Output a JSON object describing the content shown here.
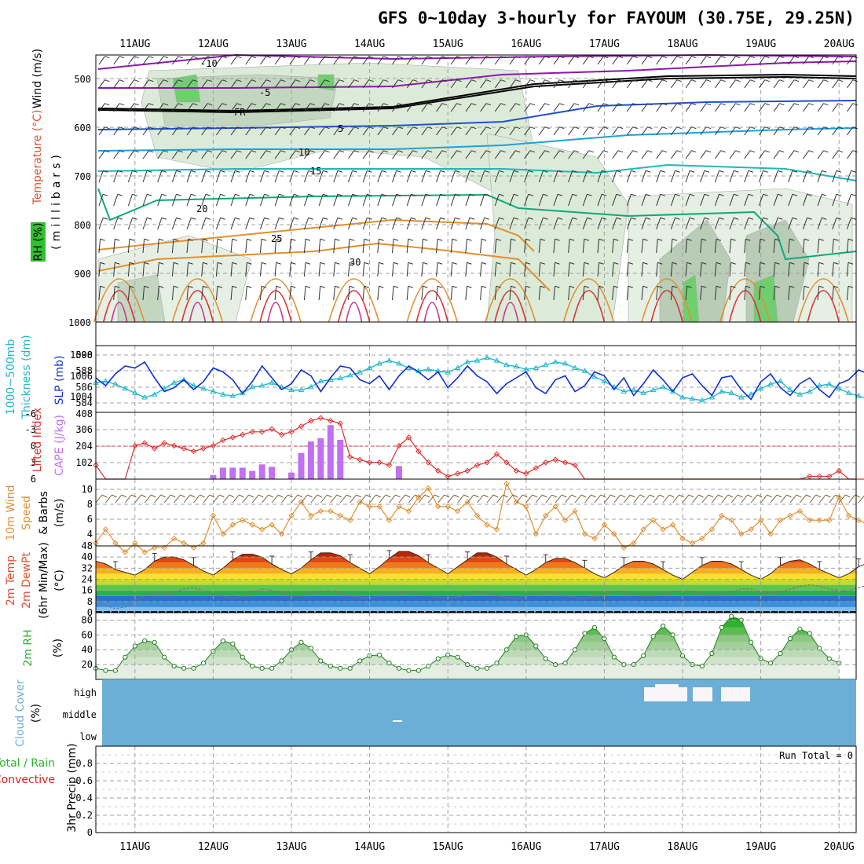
{
  "header": {
    "title": "GFS 0~10day 3-hourly for FAYOUM (30.75E, 29.25N)"
  },
  "dates": [
    "11AUG",
    "12AUG",
    "13AUG",
    "14AUG",
    "15AUG",
    "16AUG",
    "17AUG",
    "18AUG",
    "19AUG",
    "20AUG"
  ],
  "colors": {
    "background": "#ffffff",
    "temperature_label": "#e05030",
    "wind_label": "#000000",
    "rh_label": "#30b030",
    "slp": "#1030d0",
    "thickness": "#20b8c8",
    "cape": "#c070f0",
    "lifted_index": "#e03030",
    "wind_speed": "#e09030",
    "cloud": "#6baed6",
    "rh2m": "#30c030",
    "precip_total": "#30b030",
    "precip_convective": "#e02020"
  },
  "panels": {
    "profile": {
      "axis_title": "(millibars)",
      "label_temperature": "Temperature (°C)",
      "label_wind": "Wind (m/s)",
      "label_rh": "RH (%)",
      "yticks": [
        "500",
        "600",
        "700",
        "800",
        "900",
        "1000"
      ]
    },
    "slp": {
      "label_thickness_1": "1000~500mb",
      "label_thickness_2": "Thickness (dm)",
      "label_slp": "SLP (mb)",
      "left_ticks": [
        "590",
        "588",
        "586",
        "584"
      ],
      "right_ticks": [
        "1008",
        "1006",
        "1004"
      ]
    },
    "cape": {
      "label_li": "Lifted Index",
      "label_cape": "CAPE (J/kg)",
      "left_ticks": [
        "-6",
        "-3",
        "0",
        "3",
        "6"
      ],
      "right_ticks": [
        "408",
        "306",
        "204",
        "102"
      ]
    },
    "wind10": {
      "label_1": "10m Wind",
      "label_2": "Speed",
      "label_3": "& Barbs",
      "label_4": "(m/s)",
      "ticks": [
        "10",
        "8",
        "6",
        "4"
      ]
    },
    "temp2m": {
      "label_1": "2m Temp",
      "label_2": "2m DewPt",
      "label_3": "(6hr Min/Max)",
      "label_4": "(°C)",
      "ticks": [
        "48",
        "40",
        "32",
        "24",
        "16",
        "8",
        "0"
      ]
    },
    "rh2m": {
      "label_1": "2m RH",
      "label_2": "(%)",
      "ticks": [
        "80",
        "60",
        "40",
        "20"
      ]
    },
    "cloud": {
      "label_1": "Cloud Cover",
      "label_2": "(%)",
      "levels": [
        "high",
        "middle",
        "low"
      ]
    },
    "precip": {
      "label_total": "Total / Rain",
      "label_conv": "Convective",
      "label_axis": "3hr Precip (mm)",
      "run_total": "Run Total = 0",
      "ticks": [
        "0.8",
        "0.6",
        "0.4",
        "0.2",
        "0"
      ]
    }
  },
  "chart_data": [
    {
      "type": "line",
      "title": "GFS 0~10day 3-hourly for FAYOUM (30.75E, 29.25N)",
      "panel": "slp-thickness",
      "x_start": "10AUG 12Z",
      "x_step_hours": 3,
      "series": [
        {
          "name": "SLP (mb)",
          "axis": "right",
          "ylim": [
            1003,
            1009
          ],
          "values": [
            1006.2,
            1005.4,
            1006.6,
            1007.4,
            1007.2,
            1007.8,
            1006.2,
            1004.8,
            1005.2,
            1006.0,
            1005.0,
            1005.8,
            1007.2,
            1006.8,
            1006.0,
            1004.6,
            1005.8,
            1007.4,
            1006.2,
            1005.0,
            1005.6,
            1007.0,
            1006.4,
            1004.8,
            1006.2,
            1007.4,
            1007.2,
            1006.0,
            1005.6,
            1006.4,
            1005.0,
            1006.4,
            1007.4,
            1006.8,
            1006.0,
            1006.8,
            1005.2,
            1006.2,
            1007.4,
            1006.4,
            1005.8,
            1004.6,
            1005.6,
            1006.2,
            1006.8,
            1005.2,
            1004.6,
            1006.0,
            1006.4,
            1004.8,
            1005.4,
            1006.8,
            1006.4,
            1005.0,
            1006.2,
            1004.4,
            1005.6,
            1007.0,
            1006.0,
            1004.8,
            1006.2,
            1006.6,
            1005.4,
            1004.4,
            1006.2,
            1006.4,
            1005.0,
            1004.0,
            1005.8,
            1006.6,
            1005.2,
            1004.4,
            1005.6,
            1006.2,
            1005.0,
            1004.2,
            1005.6,
            1006.0,
            1007.0,
            1006.6,
            1007.2
          ]
        },
        {
          "name": "1000~500mb Thickness (dm)",
          "axis": "left",
          "ylim": [
            583,
            591
          ],
          "values": [
            586.6,
            586.8,
            586.4,
            585.8,
            585.2,
            584.6,
            585.0,
            585.8,
            586.6,
            587.0,
            586.2,
            585.8,
            585.4,
            585.0,
            584.8,
            585.2,
            586.0,
            586.2,
            586.6,
            586.0,
            585.6,
            585.6,
            586.0,
            586.8,
            587.0,
            587.2,
            587.6,
            588.0,
            588.6,
            589.2,
            589.6,
            589.2,
            588.6,
            588.2,
            588.4,
            588.2,
            588.0,
            588.6,
            589.4,
            589.6,
            590.0,
            589.6,
            589.0,
            588.8,
            588.4,
            588.6,
            589.0,
            589.4,
            589.2,
            588.6,
            588.2,
            587.4,
            586.8,
            586.0,
            585.4,
            585.6,
            585.2,
            585.6,
            586.0,
            585.4,
            584.6,
            584.4,
            584.2,
            584.6,
            585.4,
            585.2,
            584.6,
            585.0,
            585.8,
            586.4,
            586.8,
            585.6,
            585.0,
            585.4,
            586.2,
            586.4,
            585.8,
            585.2,
            584.8,
            584.4,
            584.2
          ]
        }
      ]
    },
    {
      "type": "bar",
      "panel": "cape-lifted-index",
      "x_start": "10AUG 12Z",
      "x_step_hours": 3,
      "series": [
        {
          "name": "CAPE (J/kg)",
          "axis": "right",
          "ylim": [
            0,
            408
          ],
          "bars": [
            [
              12,
              25
            ],
            [
              13,
              70
            ],
            [
              14,
              70
            ],
            [
              15,
              70
            ],
            [
              16,
              50
            ],
            [
              17,
              90
            ],
            [
              18,
              75
            ],
            [
              20,
              40
            ],
            [
              21,
              160
            ],
            [
              22,
              230
            ],
            [
              23,
              250
            ],
            [
              24,
              330
            ],
            [
              25,
              240
            ],
            [
              31,
              80
            ]
          ]
        },
        {
          "name": "Lifted Index",
          "axis": "left",
          "ylim": [
            6,
            -6
          ],
          "values": [
            3.5,
            6,
            6,
            6,
            0,
            -0.5,
            0.5,
            -0.5,
            0,
            0.5,
            1,
            0.5,
            0,
            -1,
            -1.5,
            -2,
            -2.5,
            -2.5,
            -3,
            -2,
            -2.5,
            -3.5,
            -4.5,
            -5,
            -4.5,
            -4,
            2,
            2.5,
            3,
            3,
            3.5,
            0,
            -1.5,
            1,
            3,
            4.5,
            5.5,
            5,
            4.5,
            3.5,
            3,
            1.5,
            3,
            4.5,
            5,
            4,
            3,
            2.5,
            3,
            3.5,
            6,
            6,
            6,
            6,
            6,
            6,
            6,
            6,
            6,
            6,
            6,
            6,
            6,
            6,
            6,
            6,
            6,
            6,
            6,
            6,
            6,
            6,
            6,
            5.5,
            5.5,
            5.5,
            4.5,
            6,
            6,
            6,
            6
          ]
        }
      ]
    },
    {
      "type": "line",
      "panel": "wind10m",
      "x_start": "10AUG 12Z",
      "x_step_hours": 3,
      "series": [
        {
          "name": "10m Wind Speed (m/s)",
          "ylim": [
            2,
            11
          ],
          "values": [
            4,
            5.5,
            4,
            3,
            4,
            3,
            3.5,
            3.5,
            4.5,
            4,
            3.5,
            4,
            7,
            5,
            6,
            6.5,
            6,
            5.5,
            6,
            5,
            7,
            8.5,
            7,
            7.5,
            7.5,
            7,
            6.5,
            8.5,
            8,
            8,
            6.5,
            8,
            7.5,
            9,
            10,
            8,
            8,
            7.5,
            8.5,
            7,
            6,
            5.5,
            10.5,
            8.5,
            8,
            5,
            7,
            8,
            6.5,
            7.5,
            5,
            4.5,
            6,
            5,
            3.5,
            4,
            5.5,
            6.5,
            5.5,
            6,
            4.5,
            4,
            4.5,
            5.5,
            7,
            6.5,
            5,
            5.5,
            6.5,
            5,
            6.5,
            7,
            7.5,
            6.5,
            6.5,
            6.5,
            9,
            7,
            6.5,
            6,
            4.5,
            4,
            5,
            9.5,
            7
          ]
        }
      ]
    },
    {
      "type": "area",
      "panel": "temp2m",
      "x_start": "10AUG 12Z",
      "x_step_hours": 3,
      "series": [
        {
          "name": "2m Temp (°C)",
          "ylim": [
            0,
            48
          ],
          "values": [
            37,
            35,
            31,
            29,
            27,
            31,
            37,
            40,
            40,
            38,
            34,
            30,
            27,
            32,
            38,
            42,
            42,
            40,
            35,
            31,
            28,
            32,
            38,
            43,
            43,
            41,
            36,
            32,
            28,
            33,
            39,
            44,
            44,
            41,
            36,
            32,
            28,
            33,
            38,
            43,
            43,
            40,
            35,
            31,
            27,
            31,
            36,
            39,
            39,
            36,
            32,
            28,
            25,
            29,
            34,
            37,
            37,
            35,
            31,
            27,
            24,
            29,
            34,
            37,
            37,
            35,
            31,
            27,
            24,
            28,
            34,
            37,
            38,
            35,
            31,
            28,
            25,
            28,
            33,
            36,
            36
          ]
        },
        {
          "name": "2m DewPt (°C)",
          "values": [
            10,
            5,
            3,
            4,
            9,
            12,
            14,
            13,
            15,
            17,
            18,
            16,
            13,
            12,
            10,
            12,
            15,
            17,
            16,
            14,
            12,
            12,
            14,
            15,
            16,
            14,
            12,
            11,
            10,
            12,
            14,
            14,
            15,
            13,
            12,
            11,
            10,
            11,
            13,
            15,
            14,
            12,
            11,
            10,
            12,
            13,
            15,
            14,
            12,
            11,
            10,
            12,
            14,
            15,
            15,
            13,
            12,
            12,
            13,
            15,
            16,
            15,
            13,
            12,
            13,
            15,
            17,
            17,
            15,
            14,
            15,
            17,
            19,
            20,
            19,
            17,
            16,
            16,
            18,
            20,
            18
          ]
        }
      ]
    },
    {
      "type": "area",
      "panel": "rh2m",
      "x_start": "10AUG 12Z",
      "x_step_hours": 3,
      "series": [
        {
          "name": "2m RH (%)",
          "ylim": [
            0,
            90
          ],
          "values": [
            15,
            12,
            12,
            30,
            45,
            52,
            50,
            30,
            18,
            15,
            15,
            22,
            38,
            52,
            48,
            30,
            18,
            15,
            15,
            25,
            40,
            50,
            42,
            25,
            18,
            15,
            15,
            25,
            32,
            33,
            22,
            15,
            12,
            12,
            18,
            28,
            33,
            30,
            20,
            15,
            15,
            22,
            40,
            58,
            60,
            45,
            28,
            20,
            22,
            40,
            62,
            70,
            55,
            30,
            20,
            20,
            32,
            58,
            72,
            60,
            32,
            20,
            18,
            35,
            70,
            85,
            80,
            50,
            28,
            22,
            35,
            55,
            68,
            62,
            42,
            28,
            22
          ]
        }
      ]
    },
    {
      "type": "heatmap",
      "panel": "cloud-cover",
      "levels": [
        "high",
        "middle",
        "low"
      ],
      "high_cloud_blocks": [
        [
          "17AUG 15Z",
          "18AUG 00Z"
        ],
        [
          "18AUG 03Z",
          "18AUG 12Z"
        ],
        [
          "18AUG 15Z",
          "19AUG 00Z"
        ]
      ],
      "middle_cloud_blocks": [
        [
          "14AUG 09Z",
          "14AUG 12Z"
        ]
      ]
    },
    {
      "type": "bar",
      "panel": "precip",
      "ylim": [
        0,
        1
      ],
      "values": [],
      "run_total": 0
    }
  ]
}
